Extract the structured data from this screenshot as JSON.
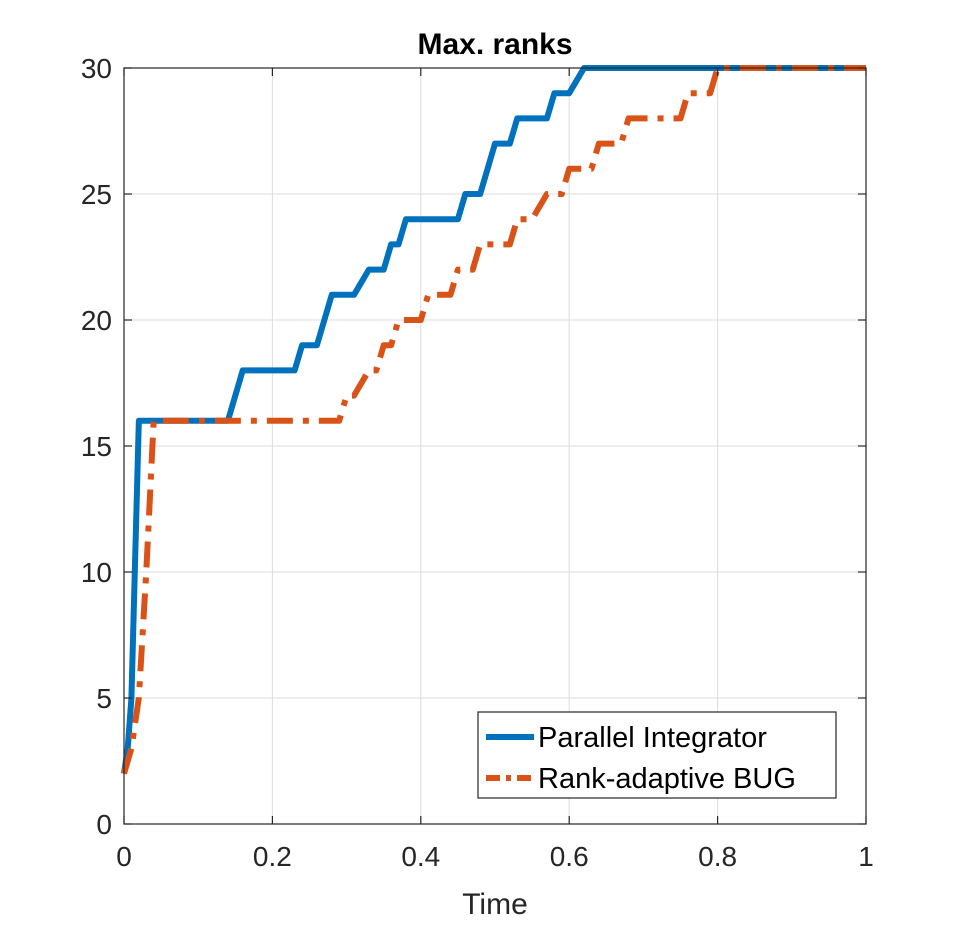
{
  "chart_data": {
    "type": "line",
    "title": "Max. ranks",
    "xlabel": "Time",
    "ylabel": "",
    "xlim": [
      0,
      1
    ],
    "ylim": [
      0,
      30
    ],
    "xticks": [
      0,
      0.2,
      0.4,
      0.6,
      0.8,
      1
    ],
    "xtick_labels": [
      "0",
      "0.2",
      "0.4",
      "0.6",
      "0.8",
      "1"
    ],
    "yticks": [
      0,
      5,
      10,
      15,
      20,
      25,
      30
    ],
    "ytick_labels": [
      "0",
      "5",
      "10",
      "15",
      "20",
      "25",
      "30"
    ],
    "grid": true,
    "legend_position": "bottom-right",
    "series": [
      {
        "name": "Parallel Integrator",
        "color": "#0072BD",
        "style": "solid",
        "x": [
          0,
          0.005,
          0.01,
          0.02,
          0.14,
          0.16,
          0.23,
          0.24,
          0.26,
          0.28,
          0.31,
          0.33,
          0.35,
          0.36,
          0.37,
          0.38,
          0.45,
          0.46,
          0.48,
          0.5,
          0.52,
          0.53,
          0.57,
          0.58,
          0.6,
          0.62,
          0.8,
          1
        ],
        "y": [
          2,
          3,
          5,
          16,
          16,
          18,
          18,
          19,
          19,
          21,
          21,
          22,
          22,
          23,
          23,
          24,
          24,
          25,
          25,
          27,
          27,
          28,
          28,
          29,
          29,
          30,
          30,
          30
        ]
      },
      {
        "name": "Rank-adaptive BUG",
        "color": "#D95319",
        "style": "dash-dot",
        "x": [
          0,
          0.01,
          0.02,
          0.03,
          0.04,
          0.29,
          0.3,
          0.31,
          0.33,
          0.34,
          0.35,
          0.36,
          0.37,
          0.38,
          0.4,
          0.41,
          0.42,
          0.44,
          0.45,
          0.47,
          0.48,
          0.49,
          0.52,
          0.53,
          0.55,
          0.57,
          0.59,
          0.6,
          0.63,
          0.64,
          0.67,
          0.68,
          0.7,
          0.72,
          0.75,
          0.76,
          0.79,
          0.8,
          0.85,
          1
        ],
        "y": [
          2,
          3,
          5,
          10,
          16,
          16,
          17,
          17,
          18,
          18,
          19,
          19,
          20,
          20,
          20,
          21,
          21,
          21,
          22,
          22,
          23,
          23,
          23,
          24,
          24,
          25,
          25,
          26,
          26,
          27,
          27,
          28,
          28,
          28,
          28,
          29,
          29,
          30,
          30,
          30
        ]
      }
    ]
  }
}
